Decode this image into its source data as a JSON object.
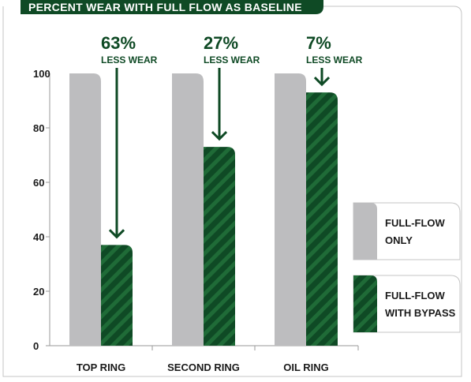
{
  "chart_data": {
    "type": "bar",
    "title": "PERCENT WEAR WITH FULL FLOW AS BASELINE",
    "categories": [
      "TOP RING",
      "SECOND RING",
      "OIL RING"
    ],
    "series": [
      {
        "name": "FULL-FLOW ONLY",
        "values": [
          100,
          100,
          100
        ],
        "color": "#bdbdbf"
      },
      {
        "name": "FULL-FLOW WITH BYPASS",
        "values": [
          37,
          73,
          93
        ],
        "color": "#0f4a25"
      }
    ],
    "ylim": [
      0,
      100
    ],
    "yticks": [
      0,
      20,
      40,
      60,
      80,
      100
    ],
    "xlabel": "",
    "ylabel": "",
    "grid": false,
    "legend_position": "right",
    "annotations": [
      {
        "category": "TOP RING",
        "percent": "63%",
        "text": "LESS WEAR"
      },
      {
        "category": "SECOND RING",
        "percent": "27%",
        "text": "LESS WEAR"
      },
      {
        "category": "OIL RING",
        "percent": "7%",
        "text": "LESS WEAR"
      }
    ],
    "colors": {
      "title_bar": "#0f4a25",
      "accent": "#0f4a25",
      "stripe": "#1f6b37",
      "frame": "#c4c4c4"
    }
  }
}
